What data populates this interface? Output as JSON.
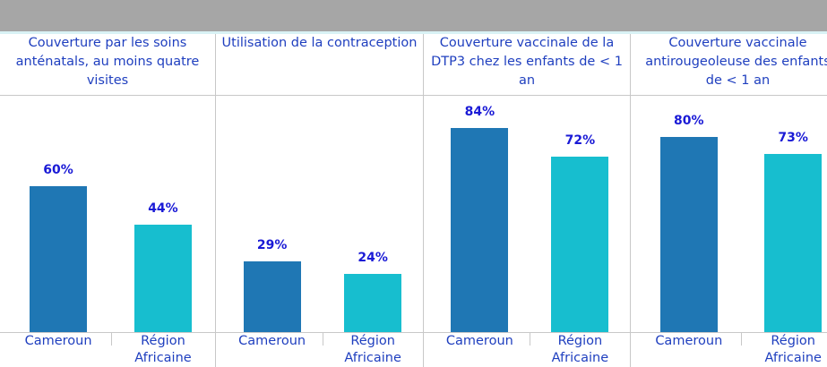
{
  "chart_data": [
    {
      "type": "bar",
      "title": "Couverture par les soins anténatals, au moins quatre visites",
      "categories": [
        "Cameroun",
        "Région Africaine"
      ],
      "values": [
        60,
        44
      ],
      "value_labels": [
        "60%",
        "44%"
      ],
      "colors": [
        "#1f77b4",
        "#17becf"
      ],
      "ylim": [
        0,
        100
      ]
    },
    {
      "type": "bar",
      "title": "Utilisation de la contraception",
      "categories": [
        "Cameroun",
        "Région Africaine"
      ],
      "values": [
        29,
        24
      ],
      "value_labels": [
        "29%",
        "24%"
      ],
      "colors": [
        "#1f77b4",
        "#17becf"
      ],
      "ylim": [
        0,
        100
      ]
    },
    {
      "type": "bar",
      "title": "Couverture vaccinale de la DTP3 chez les enfants de < 1 an",
      "categories": [
        "Cameroun",
        "Région Africaine"
      ],
      "values": [
        84,
        72
      ],
      "value_labels": [
        "84%",
        "72%"
      ],
      "colors": [
        "#1f77b4",
        "#17becf"
      ],
      "ylim": [
        0,
        100
      ]
    },
    {
      "type": "bar",
      "title": "Couverture vaccinale antirougeoleuse des enfants de < 1 an",
      "categories": [
        "Cameroun",
        "Région Africaine"
      ],
      "values": [
        80,
        73
      ],
      "value_labels": [
        "80%",
        "73%"
      ],
      "colors": [
        "#1f77b4",
        "#17becf"
      ],
      "ylim": [
        0,
        100
      ]
    }
  ]
}
